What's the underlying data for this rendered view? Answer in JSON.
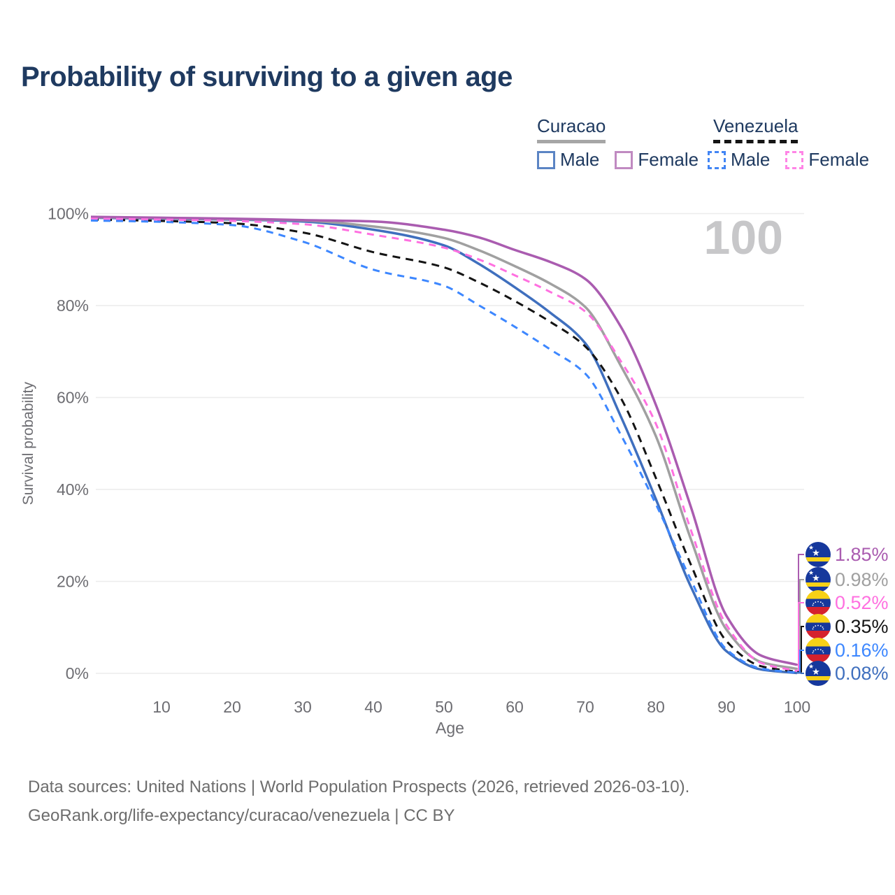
{
  "title": "Probability of surviving to a given age",
  "legend": {
    "groups": [
      {
        "name": "Curacao",
        "line_style": "solid",
        "underline_color": "#a6a6a6",
        "items": [
          {
            "label": "Male",
            "swatch_color": "#5b84c4",
            "swatch_style": "solid"
          },
          {
            "label": "Female",
            "swatch_color": "#c08ac1",
            "swatch_style": "solid"
          }
        ]
      },
      {
        "name": "Venezuela",
        "line_style": "dashed",
        "underline_color": "#151515",
        "items": [
          {
            "label": "Male",
            "swatch_color": "#4285f4",
            "swatch_style": "dashed"
          },
          {
            "label": "Female",
            "swatch_color": "#ff85e6",
            "swatch_style": "dashed"
          }
        ]
      }
    ]
  },
  "watermark": "100",
  "chart_data": {
    "type": "line",
    "title": "Probability of surviving to a given age",
    "xlabel": "Age",
    "ylabel": "Survival probability",
    "xlim": [
      0,
      100
    ],
    "ylim": [
      0,
      100
    ],
    "x_ticks": [
      10,
      20,
      30,
      40,
      50,
      60,
      70,
      80,
      90,
      100
    ],
    "y_ticks": [
      0,
      20,
      40,
      60,
      80,
      100
    ],
    "y_tick_suffix": "%",
    "grid": "horizontal",
    "x": [
      0,
      10,
      20,
      30,
      40,
      50,
      55,
      60,
      65,
      70,
      75,
      80,
      85,
      90,
      95,
      100
    ],
    "series": [
      {
        "name": "Curacao Female",
        "country": "Curacao",
        "sex": "female",
        "color": "#aa5cb0",
        "dash": "solid",
        "flag": "curacao",
        "end_label": "1.85%",
        "label_row": 0,
        "values": [
          99.3,
          99.1,
          98.9,
          98.6,
          98.3,
          96.5,
          94.8,
          92.1,
          89.5,
          85.8,
          75.5,
          58.4,
          36.0,
          12.5,
          3.8,
          1.85
        ]
      },
      {
        "name": "Curacao Both sexes",
        "country": "Curacao",
        "sex": "all",
        "color": "#a0a0a0",
        "dash": "solid",
        "flag": "curacao",
        "end_label": "0.98%",
        "label_row": 1,
        "values": [
          99.2,
          99.0,
          98.8,
          98.5,
          97.2,
          94.7,
          92.0,
          88.6,
          84.8,
          79.7,
          67.0,
          51.6,
          29.0,
          9.5,
          2.4,
          0.98
        ]
      },
      {
        "name": "Curacao Male",
        "country": "Curacao",
        "sex": "male",
        "color": "#3f6fbe",
        "dash": "solid",
        "flag": "curacao",
        "end_label": "0.08%",
        "label_row": 5,
        "values": [
          99.1,
          98.9,
          98.7,
          98.3,
          96.5,
          93.1,
          89.0,
          84.0,
          78.5,
          71.8,
          56.0,
          37.9,
          18.7,
          4.8,
          0.8,
          0.08
        ]
      },
      {
        "name": "Venezuela Female",
        "country": "Venezuela",
        "sex": "female",
        "color": "#ff70e0",
        "dash": "dashed",
        "flag": "venezuela",
        "end_label": "0.52%",
        "label_row": 2,
        "values": [
          98.9,
          98.7,
          98.4,
          97.7,
          95.4,
          92.6,
          90.0,
          86.6,
          83.0,
          78.7,
          68.0,
          54.3,
          31.0,
          10.5,
          2.2,
          0.52
        ]
      },
      {
        "name": "Venezuela Both sexes",
        "country": "Venezuela",
        "sex": "all",
        "color": "#141414",
        "dash": "dashed",
        "flag": "venezuela",
        "end_label": "0.35%",
        "label_row": 3,
        "values": [
          98.7,
          98.4,
          97.9,
          95.9,
          91.6,
          88.3,
          85.0,
          81.0,
          76.5,
          71.1,
          60.0,
          42.5,
          23.5,
          7.0,
          1.5,
          0.35
        ]
      },
      {
        "name": "Venezuela Male",
        "country": "Venezuela",
        "sex": "male",
        "color": "#3d87ff",
        "dash": "dashed",
        "flag": "venezuela",
        "end_label": "0.16%",
        "label_row": 4,
        "values": [
          98.5,
          98.2,
          97.5,
          93.9,
          87.8,
          84.3,
          80.0,
          75.4,
          70.5,
          65.2,
          52.0,
          36.8,
          20.2,
          5.2,
          1.0,
          0.16
        ]
      }
    ],
    "annotations": {
      "hover_age_watermark": "100"
    }
  },
  "colors": {
    "title": "#1f3a60",
    "axis_text": "#6d6d72",
    "gridline": "#ececec",
    "watermark": "#c7c7c9",
    "footer_text": "#6d6d6d",
    "flag_curacao_blue": "#16389c",
    "flag_yellow": "#f7d117",
    "flag_venezuela_red": "#d5212e"
  },
  "footer": {
    "line1": "Data sources: United Nations | World Population Prospects (2026, retrieved 2026-03-10).",
    "line2": "GeoRank.org/life-expectancy/curacao/venezuela | CC BY"
  }
}
